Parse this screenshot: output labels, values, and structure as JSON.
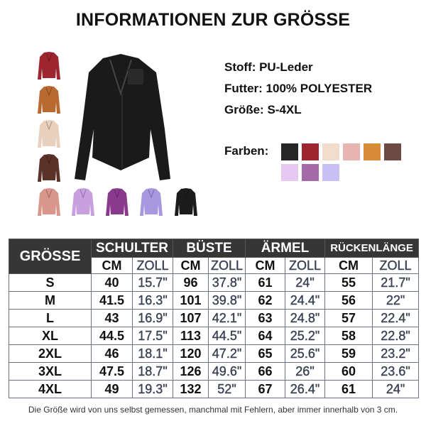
{
  "title": "INFORMATIONEN ZUR GRÖSSE",
  "specs": {
    "fabric": "Stoff: PU-Leder",
    "lining": "Futter: 100% POLYESTER",
    "sizes": "Größe: S-4XL"
  },
  "colors": {
    "label": "Farben:",
    "swatches": [
      "#262626",
      "#9c2530",
      "#f2dccc",
      "#e8b4b0",
      "#d98c38",
      "#6e4a44",
      "#e6c8f0",
      "#a46aa8",
      "#c8c0f4"
    ]
  },
  "jacket_thumbnails": [
    "#9c2530",
    "#b86a30",
    "#e8d0bc",
    "#5a3228",
    "#d8968c",
    "#c8a0e0",
    "#8a3a8c",
    "#a898e0",
    "#1c1c1c"
  ],
  "table": {
    "size_header": "GRÖSSE",
    "groups": [
      "SCHULTER",
      "BÜSTE",
      "ÄRMEL",
      "RÜCKENLÄNGE"
    ],
    "unit_cm": "CM",
    "unit_inch": "ZOLL",
    "rows": [
      [
        "S",
        "40",
        "15.7\"",
        "96",
        "37.8\"",
        "61",
        "24\"",
        "55",
        "21.7\""
      ],
      [
        "M",
        "41.5",
        "16.3\"",
        "101",
        "39.8\"",
        "62",
        "24.4\"",
        "56",
        "22\""
      ],
      [
        "L",
        "43",
        "16.9\"",
        "107",
        "42.1\"",
        "63",
        "24.8\"",
        "57",
        "22.4\""
      ],
      [
        "XL",
        "44.5",
        "17.5\"",
        "113",
        "44.5\"",
        "64",
        "25.2\"",
        "58",
        "22.8\""
      ],
      [
        "2XL",
        "46",
        "18.1\"",
        "120",
        "47.2\"",
        "65",
        "25.6\"",
        "59",
        "23.2\""
      ],
      [
        "3XL",
        "47.5",
        "18.7\"",
        "126",
        "49.6\"",
        "66",
        "26\"",
        "60",
        "23.6\""
      ],
      [
        "4XL",
        "49",
        "19.3\"",
        "132",
        "52\"",
        "67",
        "26.4\"",
        "61",
        "24\""
      ]
    ]
  },
  "footnote": "Die Größe wird von uns selbst gemessen, manchmal mit Fehlern, aber immer innerhalb von 3 cm."
}
